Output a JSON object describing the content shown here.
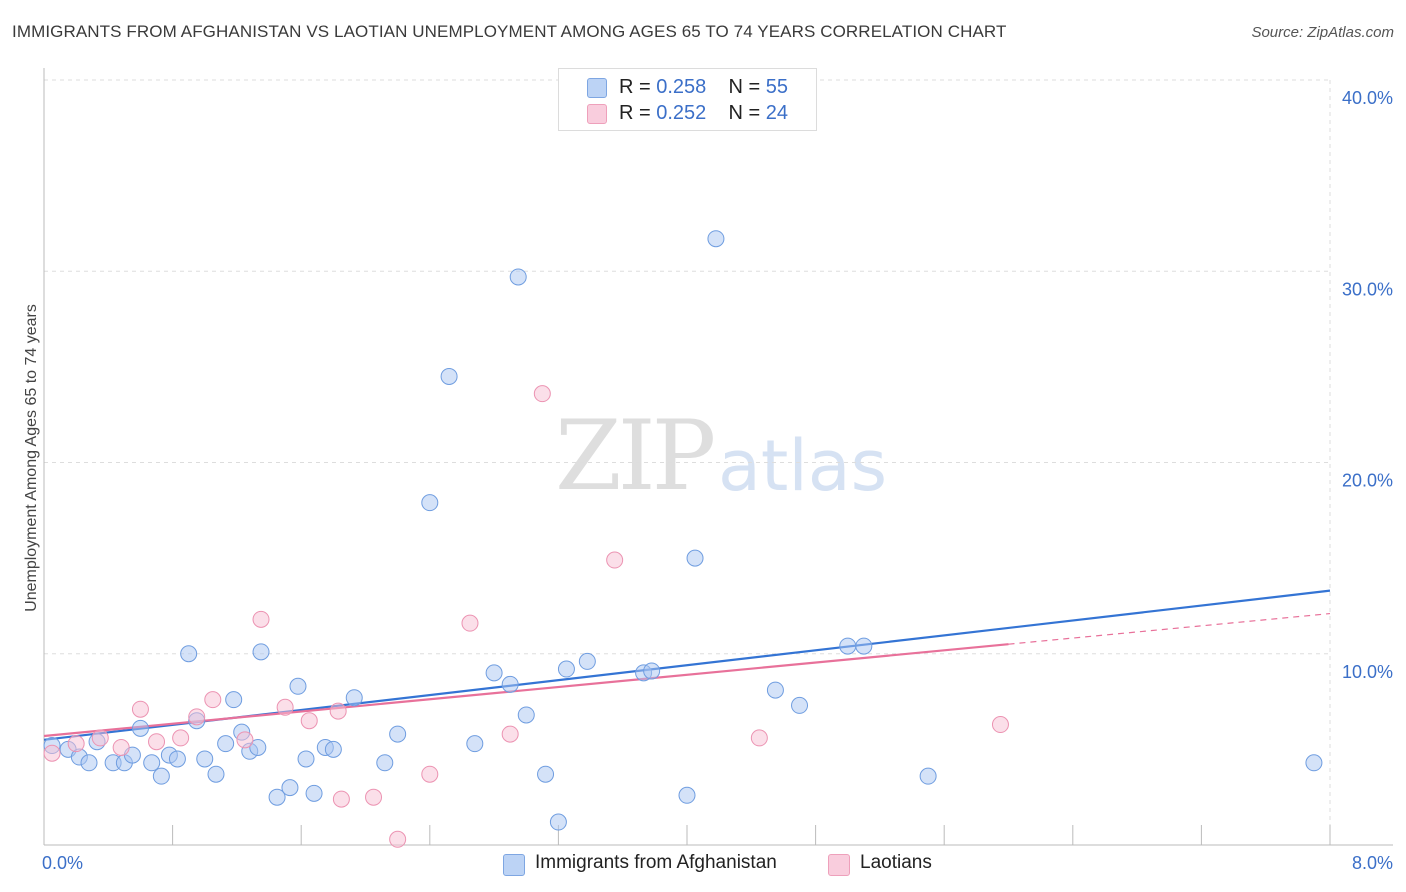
{
  "title": "IMMIGRANTS FROM AFGHANISTAN VS LAOTIAN UNEMPLOYMENT AMONG AGES 65 TO 74 YEARS CORRELATION CHART",
  "source": "Source: ZipAtlas.com",
  "watermark": {
    "zip": "ZIP",
    "atlas": "atlas"
  },
  "legend": {
    "rows": [
      {
        "r_label": "R = ",
        "r_value": "0.258",
        "n_label": "N = ",
        "n_value": "55"
      },
      {
        "r_label": "R = ",
        "r_value": "0.252",
        "n_label": "N = ",
        "n_value": "24"
      }
    ]
  },
  "colors": {
    "afghan_fill": "#a9c6f2",
    "afghan_stroke": "#6f9de0",
    "afghan_line": "#3474d4",
    "laotian_fill": "#f7bfd3",
    "laotian_stroke": "#ec93b2",
    "laotian_line": "#e8719a",
    "grid": "#dddddd",
    "tick_text": "#3b6fc8"
  },
  "chart_data": {
    "type": "scatter",
    "title": "IMMIGRANTS FROM AFGHANISTAN VS LAOTIAN UNEMPLOYMENT AMONG AGES 65 TO 74 YEARS CORRELATION CHART",
    "xlabel": "",
    "ylabel": "Unemployment Among Ages 65 to 74 years",
    "xlim": [
      0,
      8
    ],
    "ylim": [
      0,
      40
    ],
    "x_tick_labels": [
      {
        "value": 0,
        "label": "0.0%"
      },
      {
        "value": 8,
        "label": "8.0%"
      }
    ],
    "y_tick_labels": [
      {
        "value": 10,
        "label": "10.0%"
      },
      {
        "value": 20,
        "label": "20.0%"
      },
      {
        "value": 30,
        "label": "30.0%"
      },
      {
        "value": 40,
        "label": "40.0%"
      }
    ],
    "series": [
      {
        "name": "Immigrants from Afghanistan",
        "color_key": "afghan",
        "R": 0.258,
        "N": 55,
        "trend": {
          "x0": 0.0,
          "y0": 5.5,
          "x1": 8.0,
          "y1": 13.3,
          "solid_until": 8.0
        },
        "points": [
          [
            0.05,
            5.2
          ],
          [
            0.15,
            5.0
          ],
          [
            0.22,
            4.6
          ],
          [
            0.28,
            4.3
          ],
          [
            0.33,
            5.4
          ],
          [
            0.43,
            4.3
          ],
          [
            0.5,
            4.3
          ],
          [
            0.55,
            4.7
          ],
          [
            0.6,
            6.1
          ],
          [
            0.67,
            4.3
          ],
          [
            0.73,
            3.6
          ],
          [
            0.78,
            4.7
          ],
          [
            0.83,
            4.5
          ],
          [
            0.9,
            10.0
          ],
          [
            0.95,
            6.5
          ],
          [
            1.0,
            4.5
          ],
          [
            1.07,
            3.7
          ],
          [
            1.13,
            5.3
          ],
          [
            1.18,
            7.6
          ],
          [
            1.23,
            5.9
          ],
          [
            1.28,
            4.9
          ],
          [
            1.33,
            5.1
          ],
          [
            1.35,
            10.1
          ],
          [
            1.45,
            2.5
          ],
          [
            1.53,
            3.0
          ],
          [
            1.58,
            8.3
          ],
          [
            1.63,
            4.5
          ],
          [
            1.68,
            2.7
          ],
          [
            1.75,
            5.1
          ],
          [
            1.8,
            5.0
          ],
          [
            1.93,
            7.7
          ],
          [
            2.12,
            4.3
          ],
          [
            2.2,
            5.8
          ],
          [
            2.4,
            17.9
          ],
          [
            2.52,
            24.5
          ],
          [
            2.68,
            5.3
          ],
          [
            2.8,
            9.0
          ],
          [
            2.9,
            8.4
          ],
          [
            2.95,
            29.7
          ],
          [
            3.0,
            6.8
          ],
          [
            3.12,
            3.7
          ],
          [
            3.2,
            1.2
          ],
          [
            3.25,
            9.2
          ],
          [
            3.38,
            9.6
          ],
          [
            3.73,
            9.0
          ],
          [
            3.78,
            9.1
          ],
          [
            4.0,
            2.6
          ],
          [
            4.05,
            15.0
          ],
          [
            4.18,
            31.7
          ],
          [
            4.55,
            8.1
          ],
          [
            4.7,
            7.3
          ],
          [
            5.0,
            10.4
          ],
          [
            5.1,
            10.4
          ],
          [
            5.5,
            3.6
          ],
          [
            7.9,
            4.3
          ]
        ]
      },
      {
        "name": "Laotians",
        "color_key": "laotian",
        "R": 0.252,
        "N": 24,
        "trend": {
          "x0": 0.0,
          "y0": 5.7,
          "x1": 8.0,
          "y1": 12.1,
          "solid_until": 6.0
        },
        "points": [
          [
            0.05,
            4.8
          ],
          [
            0.2,
            5.3
          ],
          [
            0.35,
            5.6
          ],
          [
            0.48,
            5.1
          ],
          [
            0.6,
            7.1
          ],
          [
            0.7,
            5.4
          ],
          [
            0.85,
            5.6
          ],
          [
            0.95,
            6.7
          ],
          [
            1.05,
            7.6
          ],
          [
            1.25,
            5.5
          ],
          [
            1.35,
            11.8
          ],
          [
            1.5,
            7.2
          ],
          [
            1.65,
            6.5
          ],
          [
            1.83,
            7.0
          ],
          [
            1.85,
            2.4
          ],
          [
            2.05,
            2.5
          ],
          [
            2.2,
            0.3
          ],
          [
            2.4,
            3.7
          ],
          [
            2.65,
            11.6
          ],
          [
            2.9,
            5.8
          ],
          [
            3.1,
            23.6
          ],
          [
            3.55,
            14.9
          ],
          [
            4.45,
            5.6
          ],
          [
            5.95,
            6.3
          ]
        ]
      }
    ]
  },
  "bottom_legend": [
    {
      "label": "Immigrants from Afghanistan"
    },
    {
      "label": "Laotians"
    }
  ]
}
